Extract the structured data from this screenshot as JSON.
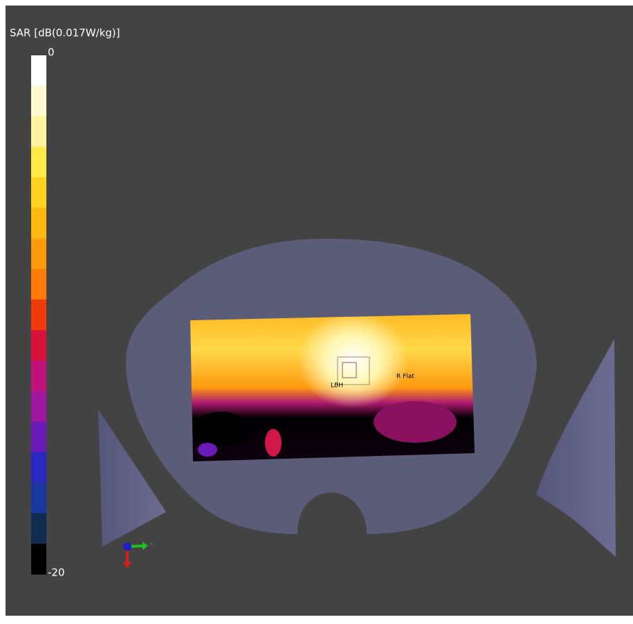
{
  "colorbar": {
    "title": "SAR [dB(0.017W/kg)]",
    "max": 0,
    "min": -20,
    "colors": [
      "#ffffff",
      "#fffbd0",
      "#fff3a0",
      "#ffe84a",
      "#ffd21e",
      "#ffb812",
      "#ff9a0c",
      "#ff7a08",
      "#f03a0a",
      "#d8123a",
      "#c0127a",
      "#a016a0",
      "#6a1ab8",
      "#2a28c0",
      "#1838a0",
      "#102c50",
      "#000000"
    ]
  },
  "probe_labels": [
    "LBH",
    "R Flat"
  ],
  "axis_label": "Y"
}
